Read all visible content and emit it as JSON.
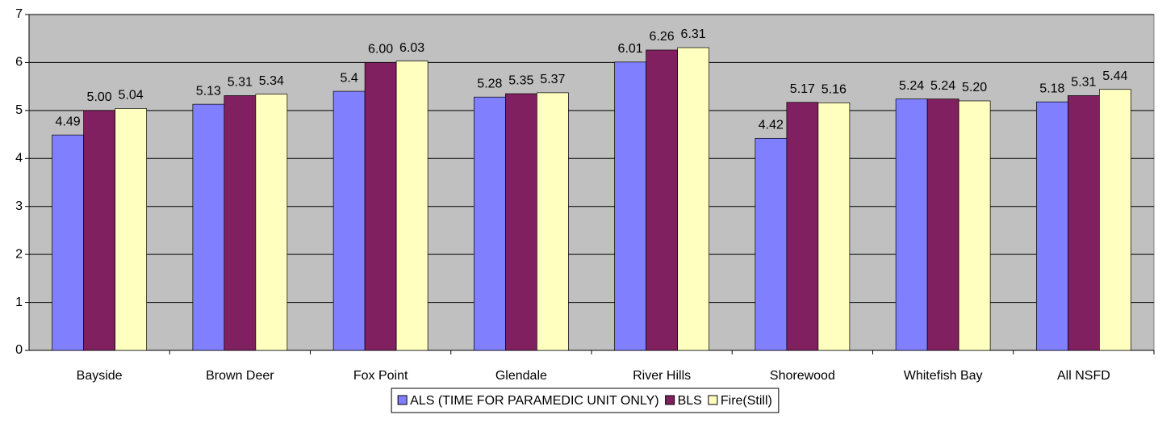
{
  "chart_data": {
    "type": "bar",
    "categories": [
      "Bayside",
      "Brown Deer",
      "Fox Point",
      "Glendale",
      "River Hills",
      "Shorewood",
      "Whitefish Bay",
      "All NSFD"
    ],
    "series": [
      {
        "name": "ALS (TIME FOR PARAMEDIC UNIT ONLY)",
        "color": "#8080ff",
        "values": [
          4.49,
          5.13,
          5.4,
          5.28,
          6.01,
          4.42,
          5.24,
          5.18
        ],
        "value_labels": [
          "4.49",
          "5.13",
          "5.4",
          "5.28",
          "6.01",
          "4.42",
          "5.24",
          "5.18"
        ]
      },
      {
        "name": "BLS",
        "color": "#802060",
        "values": [
          5,
          5.31,
          6,
          5.35,
          6.26,
          5.17,
          5.24,
          5.31
        ],
        "value_labels": [
          "5.00",
          "5.31",
          "6.00",
          "5.35",
          "6.26",
          "5.17",
          "5.24",
          "5.31"
        ]
      },
      {
        "name": "Fire(Still)",
        "color": "#ffffc0",
        "values": [
          5.04,
          5.34,
          6.03,
          5.37,
          6.31,
          5.16,
          5.2,
          5.44
        ],
        "value_labels": [
          "5.04",
          "5.34",
          "6.03",
          "5.37",
          "6.31",
          "5.16",
          "5.20",
          "5.44"
        ]
      }
    ],
    "ylim": [
      0,
      7
    ],
    "yticks": [
      0,
      1,
      2,
      3,
      4,
      5,
      6,
      7
    ],
    "grid": true,
    "legend": "bottom"
  }
}
